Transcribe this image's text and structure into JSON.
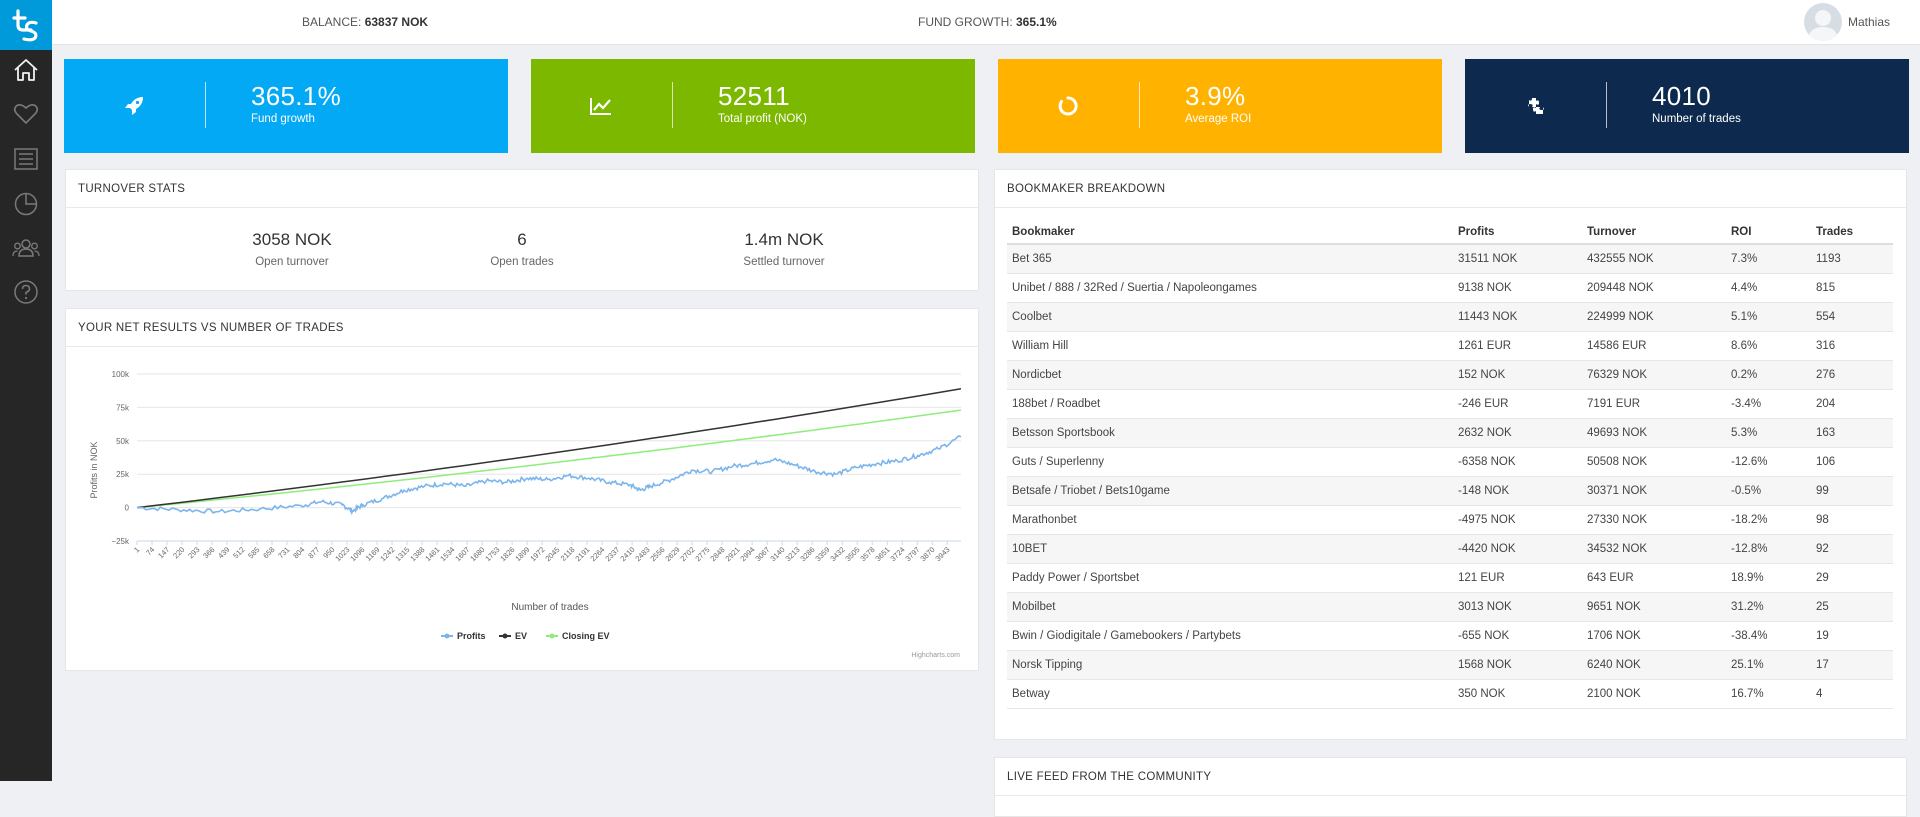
{
  "topbar": {
    "balance_label": "BALANCE:",
    "balance_value": "63837 NOK",
    "growth_label": "FUND GROWTH:",
    "growth_value": "365.1%",
    "user_name": "Mathias"
  },
  "sidebar": {
    "items": [
      {
        "name": "home",
        "icon": "home-icon"
      },
      {
        "name": "favorites",
        "icon": "heart-icon"
      },
      {
        "name": "list",
        "icon": "list-icon"
      },
      {
        "name": "stats",
        "icon": "pie-chart-icon"
      },
      {
        "name": "community",
        "icon": "users-icon"
      },
      {
        "name": "help",
        "icon": "help-icon"
      }
    ]
  },
  "stats": [
    {
      "value": "365.1%",
      "label": "Fund growth",
      "icon": "rocket-icon",
      "color": "#03a9f4"
    },
    {
      "value": "52511",
      "label": "Total profit (NOK)",
      "icon": "line-chart-icon",
      "color": "#7cb800"
    },
    {
      "value": "3.9%",
      "label": "Average ROI",
      "icon": "circle-notch-icon",
      "color": "#ffb300"
    },
    {
      "value": "4010",
      "label": "Number of trades",
      "icon": "puzzle-icon",
      "color": "#0d2a4e"
    }
  ],
  "turnover": {
    "title": "TURNOVER STATS",
    "items": [
      {
        "value": "3058 NOK",
        "label": "Open turnover"
      },
      {
        "value": "6",
        "label": "Open trades"
      },
      {
        "value": "1.4m NOK",
        "label": "Settled turnover"
      }
    ]
  },
  "chart_panel": {
    "title": "YOUR NET RESULTS VS NUMBER OF TRADES",
    "credit": "Highcharts.com"
  },
  "chart_data": {
    "type": "line",
    "title": "",
    "xlabel": "Number of trades",
    "ylabel": "Profits in NOK",
    "ylim": [
      -25000,
      100000
    ],
    "xlim": [
      1,
      4010
    ],
    "yticks": [
      {
        "v": 100000,
        "label": "100k"
      },
      {
        "v": 75000,
        "label": "75k"
      },
      {
        "v": 50000,
        "label": "50k"
      },
      {
        "v": 25000,
        "label": "25k"
      },
      {
        "v": 0,
        "label": "0"
      },
      {
        "v": -25000,
        "label": "−25k"
      }
    ],
    "xticks": [
      1,
      74,
      147,
      220,
      293,
      366,
      439,
      512,
      585,
      658,
      731,
      804,
      877,
      950,
      1023,
      1096,
      1169,
      1242,
      1315,
      1388,
      1461,
      1534,
      1607,
      1680,
      1753,
      1826,
      1899,
      1972,
      2045,
      2118,
      2191,
      2264,
      2337,
      2410,
      2483,
      2556,
      2629,
      2702,
      2775,
      2848,
      2921,
      2994,
      3067,
      3140,
      3213,
      3286,
      3359,
      3432,
      3505,
      3578,
      3651,
      3724,
      3797,
      3870,
      3943
    ],
    "series": [
      {
        "name": "Profits",
        "color": "#7cb5ec",
        "x": [
          1,
          200,
          400,
          600,
          800,
          900,
          1000,
          1050,
          1100,
          1200,
          1300,
          1400,
          1500,
          1600,
          1700,
          1800,
          1900,
          2000,
          2100,
          2200,
          2300,
          2400,
          2450,
          2500,
          2600,
          2700,
          2800,
          2900,
          3000,
          3100,
          3200,
          3300,
          3400,
          3500,
          3600,
          3700,
          3800,
          3900,
          4010
        ],
        "y": [
          0,
          -1500,
          -3000,
          -1000,
          1500,
          4500,
          2000,
          -2500,
          2000,
          7000,
          13000,
          16000,
          18000,
          16000,
          20000,
          19000,
          22000,
          21000,
          24000,
          22000,
          19000,
          17000,
          13000,
          16000,
          21000,
          28000,
          27000,
          31000,
          33000,
          36000,
          32000,
          27000,
          25000,
          30000,
          33000,
          35000,
          39000,
          44000,
          53000
        ]
      },
      {
        "name": "EV",
        "color": "#333333",
        "x": [
          1,
          4010
        ],
        "y": [
          0,
          89000
        ]
      },
      {
        "name": "Closing EV",
        "color": "#90ed7d",
        "x": [
          1,
          4010
        ],
        "y": [
          0,
          73000
        ]
      }
    ],
    "legend": "bottom-center"
  },
  "bookmaker": {
    "title": "BOOKMAKER BREAKDOWN",
    "headers": [
      "Bookmaker",
      "Profits",
      "Turnover",
      "ROI",
      "Trades"
    ],
    "rows": [
      [
        "Bet 365",
        "31511 NOK",
        "432555 NOK",
        "7.3%",
        "1193"
      ],
      [
        "Unibet / 888 / 32Red / Suertia / Napoleongames",
        "9138 NOK",
        "209448 NOK",
        "4.4%",
        "815"
      ],
      [
        "Coolbet",
        "11443 NOK",
        "224999 NOK",
        "5.1%",
        "554"
      ],
      [
        "William Hill",
        "1261 EUR",
        "14586 EUR",
        "8.6%",
        "316"
      ],
      [
        "Nordicbet",
        "152 NOK",
        "76329 NOK",
        "0.2%",
        "276"
      ],
      [
        "188bet / Roadbet",
        "-246 EUR",
        "7191 EUR",
        "-3.4%",
        "204"
      ],
      [
        "Betsson Sportsbook",
        "2632 NOK",
        "49693 NOK",
        "5.3%",
        "163"
      ],
      [
        "Guts / Superlenny",
        "-6358 NOK",
        "50508 NOK",
        "-12.6%",
        "106"
      ],
      [
        "Betsafe / Triobet / Bets10game",
        "-148 NOK",
        "30371 NOK",
        "-0.5%",
        "99"
      ],
      [
        "Marathonbet",
        "-4975 NOK",
        "27330 NOK",
        "-18.2%",
        "98"
      ],
      [
        "10BET",
        "-4420 NOK",
        "34532 NOK",
        "-12.8%",
        "92"
      ],
      [
        "Paddy Power / Sportsbet",
        "121 EUR",
        "643 EUR",
        "18.9%",
        "29"
      ],
      [
        "Mobilbet",
        "3013 NOK",
        "9651 NOK",
        "31.2%",
        "25"
      ],
      [
        "Bwin / Giodigitale / Gamebookers / Partybets",
        "-655 NOK",
        "1706 NOK",
        "-38.4%",
        "19"
      ],
      [
        "Norsk Tipping",
        "1568 NOK",
        "6240 NOK",
        "25.1%",
        "17"
      ],
      [
        "Betway",
        "350 NOK",
        "2100 NOK",
        "16.7%",
        "4"
      ]
    ]
  },
  "live_feed": {
    "title": "LIVE FEED FROM THE COMMUNITY"
  }
}
